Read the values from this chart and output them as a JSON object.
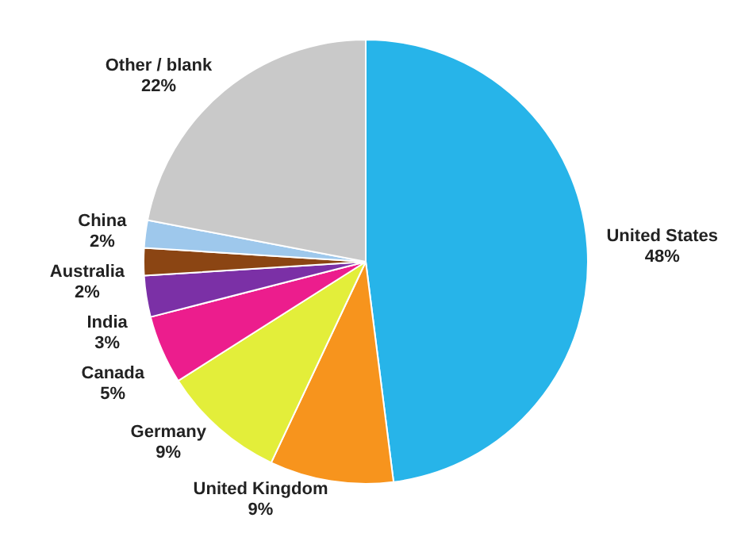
{
  "chart_data": {
    "type": "pie",
    "categories": [
      "United States",
      "United Kingdom",
      "Germany",
      "Canada",
      "India",
      "Australia",
      "China",
      "Other / blank"
    ],
    "values": [
      48,
      9,
      9,
      5,
      3,
      2,
      2,
      22
    ],
    "colors": [
      "#27b4e9",
      "#f7941d",
      "#e3ee3a",
      "#ec1d8d",
      "#7b30a6",
      "#8b4513",
      "#9ec8ec",
      "#c9c9c9"
    ],
    "value_labels": [
      "48%",
      "9%",
      "9%",
      "5%",
      "3%",
      "2%",
      "2%",
      "22%"
    ],
    "legend": false
  }
}
